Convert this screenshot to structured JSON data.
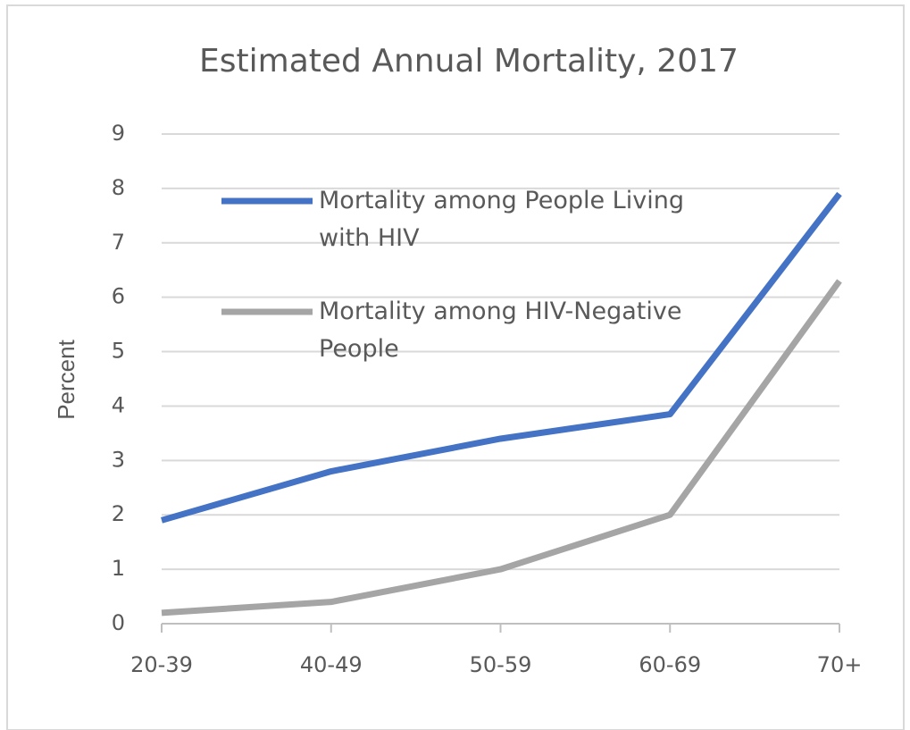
{
  "chart_data": {
    "type": "line",
    "title": "Estimated Annual Mortality, 2017",
    "y_label": "Percent",
    "categories": [
      "20-39",
      "40-49",
      "50-59",
      "60-69",
      "70+"
    ],
    "series": [
      {
        "name": "Mortality among People Living with HIV",
        "color": "#4472c4",
        "values": [
          1.9,
          2.8,
          3.4,
          3.85,
          7.9
        ]
      },
      {
        "name": "Mortality among HIV-Negative People",
        "color": "#a5a5a5",
        "values": [
          0.2,
          0.4,
          1.0,
          2.0,
          6.3
        ]
      }
    ],
    "ylim": [
      0,
      9
    ],
    "yticks": [
      0,
      1,
      2,
      3,
      4,
      5,
      6,
      7,
      8,
      9
    ],
    "grid": true,
    "legend": "upper left"
  }
}
